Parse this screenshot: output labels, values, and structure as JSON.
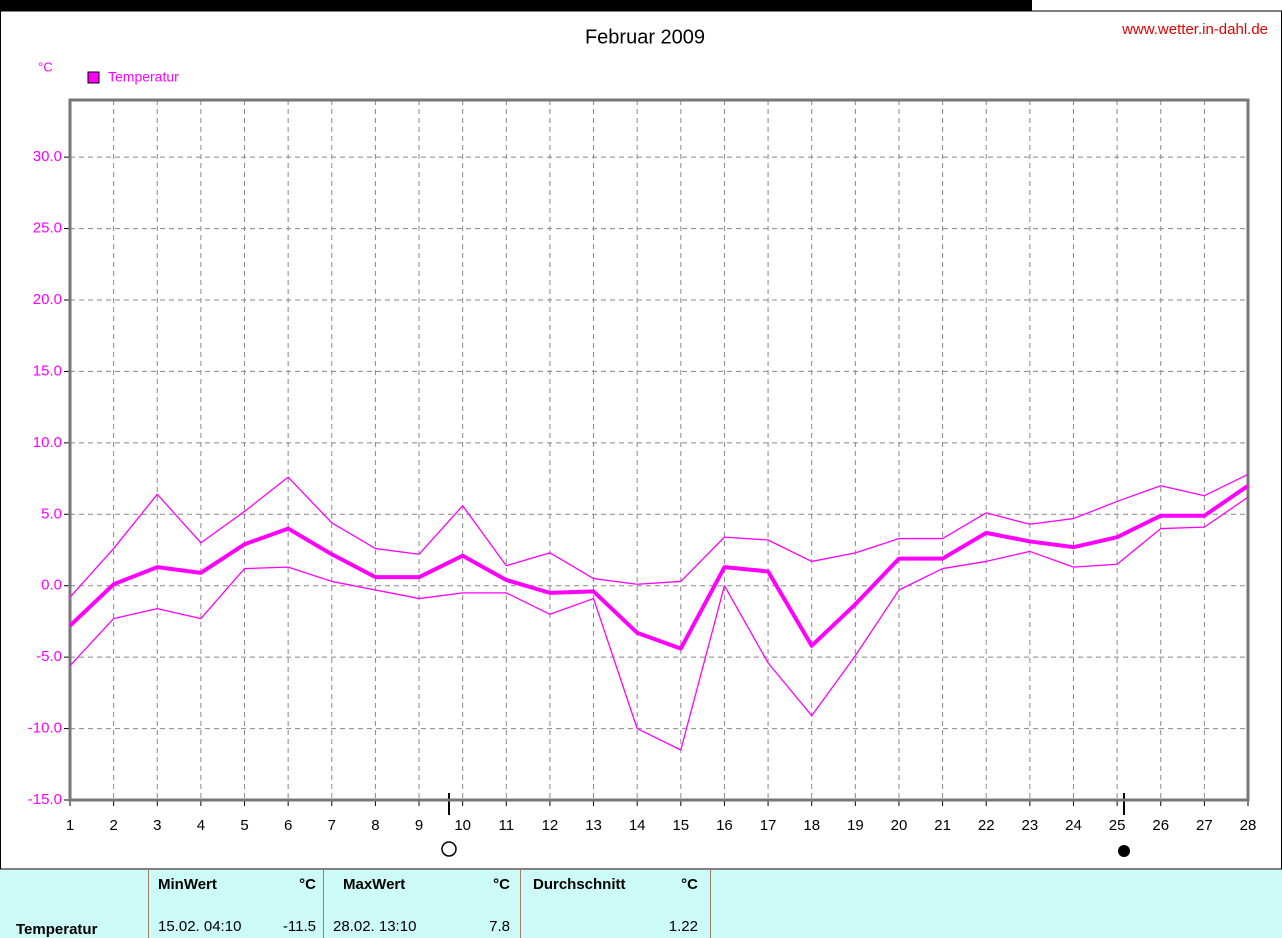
{
  "chart_data": {
    "type": "line",
    "title": "Februar 2009",
    "source": "www.wetter.in-dahl.de",
    "y_unit": "°C",
    "x": [
      1,
      2,
      3,
      4,
      5,
      6,
      7,
      8,
      9,
      10,
      11,
      12,
      13,
      14,
      15,
      16,
      17,
      18,
      19,
      20,
      21,
      22,
      23,
      24,
      25,
      26,
      27,
      28
    ],
    "series": [
      {
        "name": "Temperatur",
        "color": "#ff00ff",
        "line_width": 4,
        "values": [
          -2.8,
          0.1,
          1.3,
          0.9,
          2.9,
          4.0,
          2.2,
          0.6,
          0.6,
          2.1,
          0.4,
          -0.5,
          -0.4,
          -3.3,
          -4.4,
          1.3,
          1.0,
          -4.2,
          -1.3,
          1.9,
          1.9,
          3.7,
          3.1,
          2.7,
          3.4,
          4.9,
          4.9,
          7.0
        ]
      },
      {
        "color": "#ff00ff",
        "line_width": 1.3,
        "values": [
          -0.8,
          2.6,
          6.4,
          3.0,
          5.2,
          7.6,
          4.4,
          2.6,
          2.2,
          5.6,
          1.4,
          2.3,
          0.5,
          0.1,
          0.3,
          3.4,
          3.2,
          1.7,
          2.3,
          3.3,
          3.3,
          5.1,
          4.3,
          4.7,
          5.9,
          7.0,
          6.3,
          7.8
        ]
      },
      {
        "color": "#ff00ff",
        "line_width": 1.3,
        "values": [
          -5.6,
          -2.3,
          -1.6,
          -2.3,
          1.2,
          1.3,
          0.3,
          -0.3,
          -0.9,
          -0.5,
          -0.5,
          -2.0,
          -0.9,
          -10.0,
          -11.5,
          0.0,
          -5.4,
          -9.1,
          -4.9,
          -0.3,
          1.2,
          1.7,
          2.4,
          1.3,
          1.5,
          4.0,
          4.1,
          6.2
        ]
      }
    ],
    "xlim": [
      1,
      28
    ],
    "xticks": [
      1,
      2,
      3,
      4,
      5,
      6,
      7,
      8,
      9,
      10,
      11,
      12,
      13,
      14,
      15,
      16,
      17,
      18,
      19,
      20,
      21,
      22,
      23,
      24,
      25,
      26,
      27,
      28
    ],
    "ylim": [
      -15,
      34
    ],
    "yticks": [
      {
        "value": -15,
        "label": "-15.0"
      },
      {
        "value": -10,
        "label": "-10.0"
      },
      {
        "value": -5,
        "label": "-5.0"
      },
      {
        "value": 0,
        "label": "0.0"
      },
      {
        "value": 5,
        "label": "5.0"
      },
      {
        "value": 10,
        "label": "10.0"
      },
      {
        "value": 15,
        "label": "15.0"
      },
      {
        "value": 20,
        "label": "20.0"
      },
      {
        "value": 25,
        "label": "25.0"
      },
      {
        "value": 30,
        "label": "30.0"
      }
    ],
    "grid": true
  },
  "stats_table": {
    "headers": [
      "MinWert",
      "°C",
      "MaxWert",
      "°C",
      "Durchschnitt",
      "°C"
    ],
    "row": [
      "Temperatur",
      "15.02. 04:10",
      "-11.5",
      "28.02. 13:10",
      "7.8",
      "1.22"
    ]
  }
}
